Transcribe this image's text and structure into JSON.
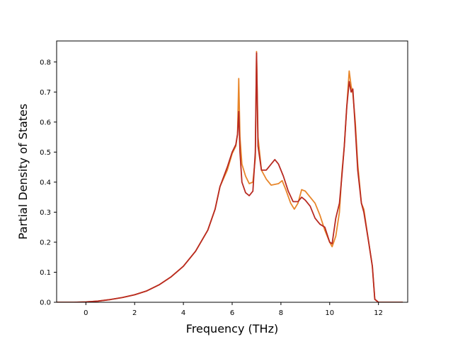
{
  "chart_data": {
    "type": "line",
    "title": "",
    "xlabel": "Frequency (THz)",
    "ylabel": "Partial Density of States",
    "xlim": [
      -1.2,
      13.2
    ],
    "ylim": [
      0.0,
      0.87
    ],
    "xticks": [
      "0",
      "2",
      "4",
      "6",
      "8",
      "10",
      "12"
    ],
    "yticks": [
      "0.0",
      "0.1",
      "0.2",
      "0.3",
      "0.4",
      "0.5",
      "0.6",
      "0.7",
      "0.8"
    ],
    "grid": false,
    "legend": "none",
    "series": [
      {
        "color": "#e8862a",
        "points": [
          [
            -1.2,
            0.0
          ],
          [
            -0.5,
            0.0
          ],
          [
            0.0,
            0.001
          ],
          [
            0.5,
            0.004
          ],
          [
            1.0,
            0.009
          ],
          [
            1.5,
            0.016
          ],
          [
            2.0,
            0.025
          ],
          [
            2.5,
            0.038
          ],
          [
            3.0,
            0.058
          ],
          [
            3.5,
            0.085
          ],
          [
            4.0,
            0.12
          ],
          [
            4.5,
            0.17
          ],
          [
            5.0,
            0.24
          ],
          [
            5.3,
            0.31
          ],
          [
            5.5,
            0.385
          ],
          [
            5.8,
            0.44
          ],
          [
            6.0,
            0.495
          ],
          [
            6.15,
            0.52
          ],
          [
            6.22,
            0.56
          ],
          [
            6.27,
            0.745
          ],
          [
            6.32,
            0.55
          ],
          [
            6.4,
            0.46
          ],
          [
            6.55,
            0.42
          ],
          [
            6.7,
            0.395
          ],
          [
            6.85,
            0.4
          ],
          [
            6.95,
            0.48
          ],
          [
            7.0,
            0.835
          ],
          [
            7.06,
            0.55
          ],
          [
            7.2,
            0.44
          ],
          [
            7.4,
            0.41
          ],
          [
            7.6,
            0.39
          ],
          [
            7.9,
            0.395
          ],
          [
            8.05,
            0.405
          ],
          [
            8.2,
            0.375
          ],
          [
            8.4,
            0.33
          ],
          [
            8.55,
            0.31
          ],
          [
            8.7,
            0.33
          ],
          [
            8.85,
            0.375
          ],
          [
            9.0,
            0.37
          ],
          [
            9.2,
            0.35
          ],
          [
            9.4,
            0.33
          ],
          [
            9.6,
            0.29
          ],
          [
            9.8,
            0.24
          ],
          [
            10.0,
            0.2
          ],
          [
            10.1,
            0.185
          ],
          [
            10.25,
            0.22
          ],
          [
            10.4,
            0.3
          ],
          [
            10.5,
            0.43
          ],
          [
            10.6,
            0.52
          ],
          [
            10.7,
            0.65
          ],
          [
            10.8,
            0.77
          ],
          [
            10.88,
            0.72
          ],
          [
            10.95,
            0.695
          ],
          [
            11.05,
            0.6
          ],
          [
            11.15,
            0.46
          ],
          [
            11.3,
            0.33
          ],
          [
            11.4,
            0.31
          ],
          [
            11.6,
            0.2
          ],
          [
            11.75,
            0.12
          ],
          [
            11.85,
            0.01
          ],
          [
            12.0,
            0.0
          ],
          [
            13.0,
            0.0
          ]
        ]
      },
      {
        "color": "#b82a22",
        "points": [
          [
            -1.2,
            0.0
          ],
          [
            -0.5,
            0.0
          ],
          [
            0.0,
            0.001
          ],
          [
            0.5,
            0.004
          ],
          [
            1.0,
            0.009
          ],
          [
            1.5,
            0.016
          ],
          [
            2.0,
            0.025
          ],
          [
            2.5,
            0.038
          ],
          [
            3.0,
            0.058
          ],
          [
            3.5,
            0.085
          ],
          [
            4.0,
            0.12
          ],
          [
            4.5,
            0.17
          ],
          [
            5.0,
            0.24
          ],
          [
            5.3,
            0.31
          ],
          [
            5.5,
            0.385
          ],
          [
            5.8,
            0.45
          ],
          [
            6.0,
            0.5
          ],
          [
            6.15,
            0.525
          ],
          [
            6.22,
            0.56
          ],
          [
            6.27,
            0.635
          ],
          [
            6.32,
            0.5
          ],
          [
            6.4,
            0.4
          ],
          [
            6.55,
            0.365
          ],
          [
            6.7,
            0.355
          ],
          [
            6.85,
            0.37
          ],
          [
            6.95,
            0.5
          ],
          [
            7.0,
            0.83
          ],
          [
            7.06,
            0.52
          ],
          [
            7.2,
            0.44
          ],
          [
            7.4,
            0.44
          ],
          [
            7.6,
            0.46
          ],
          [
            7.75,
            0.475
          ],
          [
            7.9,
            0.46
          ],
          [
            8.1,
            0.42
          ],
          [
            8.3,
            0.37
          ],
          [
            8.5,
            0.335
          ],
          [
            8.7,
            0.335
          ],
          [
            8.85,
            0.35
          ],
          [
            9.0,
            0.34
          ],
          [
            9.2,
            0.32
          ],
          [
            9.4,
            0.28
          ],
          [
            9.6,
            0.26
          ],
          [
            9.8,
            0.25
          ],
          [
            10.0,
            0.2
          ],
          [
            10.1,
            0.195
          ],
          [
            10.25,
            0.28
          ],
          [
            10.4,
            0.33
          ],
          [
            10.5,
            0.42
          ],
          [
            10.6,
            0.52
          ],
          [
            10.7,
            0.65
          ],
          [
            10.8,
            0.735
          ],
          [
            10.88,
            0.7
          ],
          [
            10.95,
            0.71
          ],
          [
            11.05,
            0.58
          ],
          [
            11.15,
            0.44
          ],
          [
            11.3,
            0.33
          ],
          [
            11.4,
            0.3
          ],
          [
            11.6,
            0.2
          ],
          [
            11.75,
            0.12
          ],
          [
            11.85,
            0.01
          ],
          [
            12.0,
            0.0
          ],
          [
            13.0,
            0.0
          ]
        ]
      }
    ]
  }
}
